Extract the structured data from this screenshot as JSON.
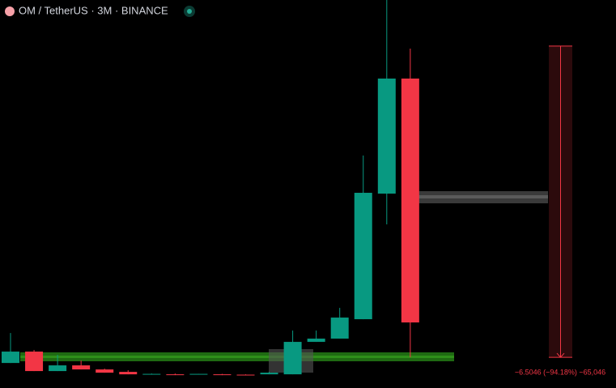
{
  "chart_data": {
    "type": "candlestick",
    "title": "OM / TetherUS · 3M · BINANCE",
    "open": [
      0.283,
      0.521,
      0.114,
      0.233,
      0.148,
      0.097,
      0.046,
      0.046,
      0.046,
      0.046,
      0.039,
      0.046,
      0.046,
      0.724,
      0.792,
      1.198,
      3.823,
      6.228
    ],
    "high": [
      0.91,
      0.554,
      0.453,
      0.334,
      0.165,
      0.131,
      0.063,
      0.063,
      0.055,
      0.055,
      0.046,
      0.097,
      0.961,
      0.961,
      1.435,
      4.619,
      7.95,
      6.855
    ],
    "low": [
      0.283,
      0.114,
      0.114,
      0.148,
      0.08,
      0.046,
      0.039,
      0.029,
      0.046,
      0.029,
      0.029,
      0.046,
      0.046,
      0.724,
      0.792,
      1.198,
      3.18,
      0.402
    ],
    "close": [
      0.521,
      0.114,
      0.233,
      0.148,
      0.08,
      0.046,
      0.055,
      0.029,
      0.055,
      0.029,
      0.029,
      0.08,
      0.724,
      0.792,
      1.232,
      3.84,
      6.228,
      1.13
    ],
    "up_color": "#089981",
    "down_color": "#f23645",
    "ylim": [
      -0.24,
      7.87
    ],
    "measure": {
      "from": 6.9066,
      "to": 0.402,
      "label": "−6.5046 (−94.18%) −65,046"
    }
  }
}
